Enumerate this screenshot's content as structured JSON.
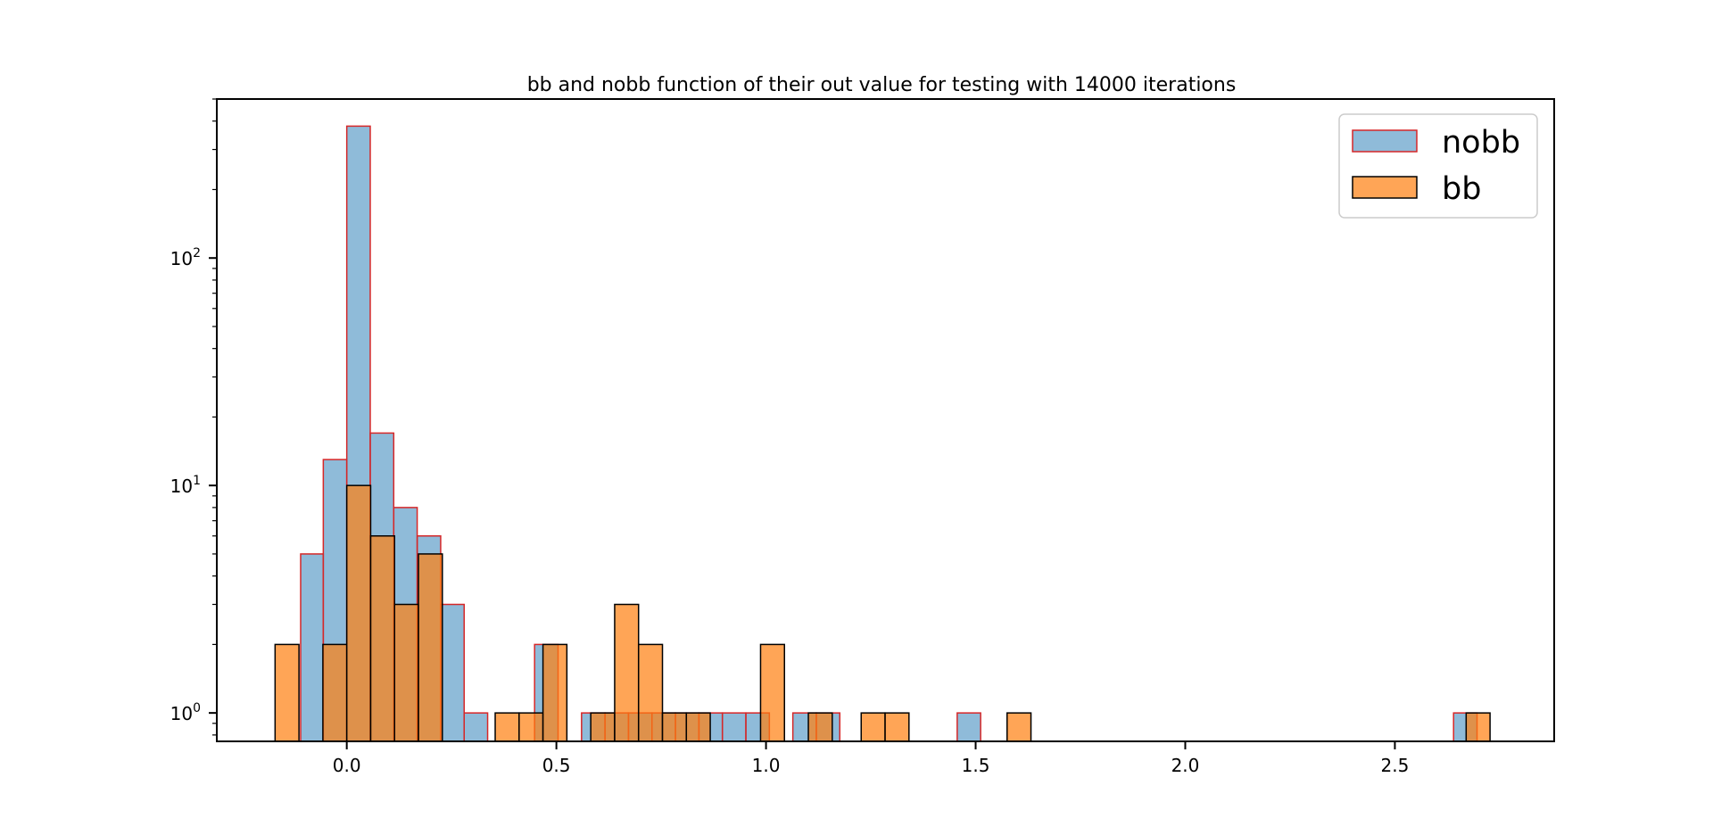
{
  "chart_data": {
    "type": "bar",
    "title": "bb and nobb function of their out value for testing with 14000 iterations",
    "xlabel": "",
    "ylabel": "",
    "xlim": [
      -0.31,
      2.88
    ],
    "ylim": [
      0.75,
      500
    ],
    "yscale": "log",
    "grid": false,
    "legend_position": "top-right",
    "x_ticks": [
      0.0,
      0.5,
      1.0,
      1.5,
      2.0,
      2.5
    ],
    "x_tick_labels": [
      "0.0",
      "0.5",
      "1.0",
      "1.5",
      "2.0",
      "2.5"
    ],
    "y_ticks": [
      1,
      10,
      100
    ],
    "y_tick_labels": [
      {
        "base": "10",
        "exp": "0"
      },
      {
        "base": "10",
        "exp": "1"
      },
      {
        "base": "10",
        "exp": "2"
      }
    ],
    "series": [
      {
        "name": "nobb",
        "color": "#1f77b4",
        "edge_color": "#d62728",
        "bins": [
          {
            "x0": -0.11,
            "x1": -0.056,
            "count": 5
          },
          {
            "x0": -0.056,
            "x1": 0.0,
            "count": 13
          },
          {
            "x0": 0.0,
            "x1": 0.056,
            "count": 380
          },
          {
            "x0": 0.056,
            "x1": 0.112,
            "count": 17
          },
          {
            "x0": 0.112,
            "x1": 0.168,
            "count": 8
          },
          {
            "x0": 0.168,
            "x1": 0.224,
            "count": 6
          },
          {
            "x0": 0.224,
            "x1": 0.28,
            "count": 3
          },
          {
            "x0": 0.28,
            "x1": 0.336,
            "count": 1
          },
          {
            "x0": 0.448,
            "x1": 0.504,
            "count": 2
          },
          {
            "x0": 0.56,
            "x1": 0.616,
            "count": 1
          },
          {
            "x0": 0.616,
            "x1": 0.672,
            "count": 1
          },
          {
            "x0": 0.672,
            "x1": 0.728,
            "count": 1
          },
          {
            "x0": 0.728,
            "x1": 0.784,
            "count": 1
          },
          {
            "x0": 0.784,
            "x1": 0.84,
            "count": 1
          },
          {
            "x0": 0.84,
            "x1": 0.896,
            "count": 1
          },
          {
            "x0": 0.896,
            "x1": 0.952,
            "count": 1
          },
          {
            "x0": 0.952,
            "x1": 1.008,
            "count": 1
          },
          {
            "x0": 1.064,
            "x1": 1.12,
            "count": 1
          },
          {
            "x0": 1.12,
            "x1": 1.176,
            "count": 1
          },
          {
            "x0": 1.456,
            "x1": 1.512,
            "count": 1
          },
          {
            "x0": 2.64,
            "x1": 2.696,
            "count": 1
          }
        ]
      },
      {
        "name": "bb",
        "color": "#ff7f0e",
        "edge_color": "#000000",
        "bins": [
          {
            "x0": -0.171,
            "x1": -0.114,
            "count": 2
          },
          {
            "x0": -0.057,
            "x1": 0.0,
            "count": 2
          },
          {
            "x0": 0.0,
            "x1": 0.057,
            "count": 10
          },
          {
            "x0": 0.057,
            "x1": 0.114,
            "count": 6
          },
          {
            "x0": 0.114,
            "x1": 0.171,
            "count": 3
          },
          {
            "x0": 0.171,
            "x1": 0.228,
            "count": 5
          },
          {
            "x0": 0.354,
            "x1": 0.411,
            "count": 1
          },
          {
            "x0": 0.411,
            "x1": 0.468,
            "count": 1
          },
          {
            "x0": 0.468,
            "x1": 0.525,
            "count": 2
          },
          {
            "x0": 0.582,
            "x1": 0.639,
            "count": 1
          },
          {
            "x0": 0.639,
            "x1": 0.696,
            "count": 3
          },
          {
            "x0": 0.696,
            "x1": 0.753,
            "count": 2
          },
          {
            "x0": 0.753,
            "x1": 0.81,
            "count": 1
          },
          {
            "x0": 0.81,
            "x1": 0.867,
            "count": 1
          },
          {
            "x0": 0.987,
            "x1": 1.044,
            "count": 2
          },
          {
            "x0": 1.101,
            "x1": 1.158,
            "count": 1
          },
          {
            "x0": 1.227,
            "x1": 1.284,
            "count": 1
          },
          {
            "x0": 1.284,
            "x1": 1.341,
            "count": 1
          },
          {
            "x0": 1.575,
            "x1": 1.632,
            "count": 1
          },
          {
            "x0": 2.67,
            "x1": 2.727,
            "count": 1
          }
        ]
      }
    ]
  }
}
